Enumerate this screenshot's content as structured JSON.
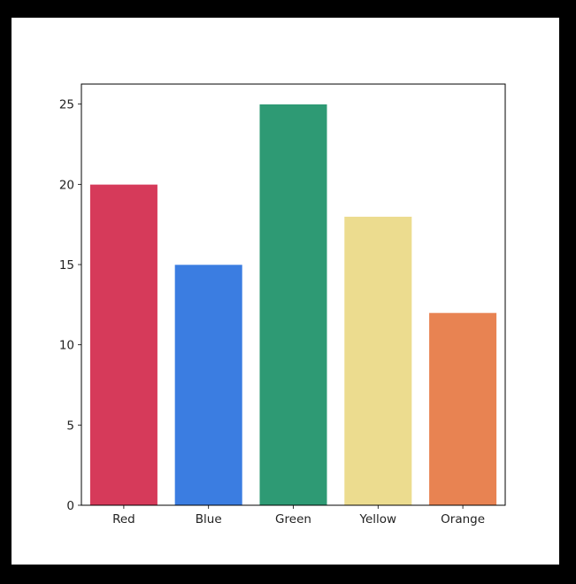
{
  "chart_data": {
    "type": "bar",
    "categories": [
      "Red",
      "Blue",
      "Green",
      "Yellow",
      "Orange"
    ],
    "values": [
      20,
      15,
      25,
      18,
      12
    ],
    "colors": [
      "#d63a5a",
      "#3b7de1",
      "#2e9a74",
      "#ecdc8f",
      "#e88352"
    ],
    "title": "",
    "xlabel": "",
    "ylabel": "",
    "ylim": [
      0,
      26.25
    ],
    "yticks": [
      0,
      5,
      10,
      15,
      20,
      25
    ],
    "grid": false
  }
}
